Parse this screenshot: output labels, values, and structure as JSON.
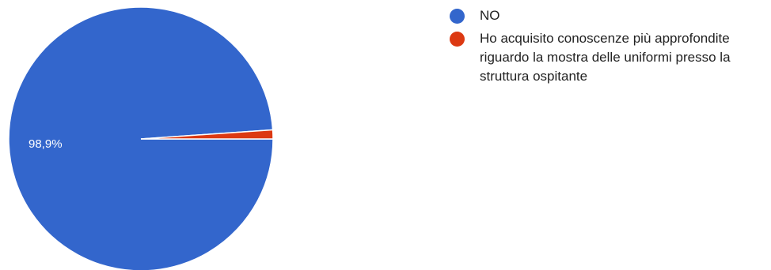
{
  "chart_data": {
    "type": "pie",
    "title": "",
    "slices": [
      {
        "label": "NO",
        "value": 98.9,
        "display": "98,9%",
        "color": "#3366cc"
      },
      {
        "label": "Ho acquisito conoscenze più approfondite riguardo la mostra delle uniformi presso la struttura ospitante",
        "value": 1.1,
        "display": "",
        "color": "#dc3912"
      }
    ],
    "legend_position": "right"
  },
  "legend": {
    "items": [
      {
        "label": "NO",
        "color": "#3366cc"
      },
      {
        "label": "Ho acquisito conoscenze più approfondite riguardo la mostra delle uniformi presso la struttura ospitante",
        "color": "#dc3912"
      }
    ]
  }
}
